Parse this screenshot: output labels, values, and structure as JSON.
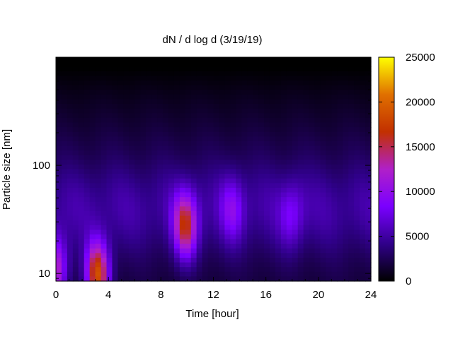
{
  "chart_data": {
    "type": "heatmap",
    "title": "dN / d log d (3/19/19)",
    "xlabel": "Time [hour]",
    "ylabel": "Particle size [nm]",
    "xlim": [
      0,
      24
    ],
    "xticks": [
      0,
      4,
      8,
      12,
      16,
      20,
      24
    ],
    "y_scale": "log",
    "ylim": [
      8.5,
      1000
    ],
    "yticks": [
      10,
      100
    ],
    "colorbar": {
      "range": [
        0,
        25000
      ],
      "ticks": [
        0,
        5000,
        10000,
        15000,
        20000,
        25000
      ],
      "palette": [
        "#000000",
        "#30008a",
        "#7a00ff",
        "#b020c8",
        "#c23000",
        "#e07000",
        "#ffff00"
      ]
    },
    "grid": false,
    "legend": "none",
    "features": [
      {
        "time_hour": 0.0,
        "size_nm": 11,
        "value": 15000
      },
      {
        "time_hour": 3.2,
        "size_nm": 10,
        "value": 20000
      },
      {
        "time_hour": 9.9,
        "size_nm": 28,
        "value": 16000
      },
      {
        "time_hour": 13.5,
        "size_nm": 40,
        "value": 8500
      },
      {
        "time_hour": 18.0,
        "size_nm": 35,
        "value": 8000
      }
    ],
    "background_level": 5500,
    "missing_data_size_nm": 850
  }
}
